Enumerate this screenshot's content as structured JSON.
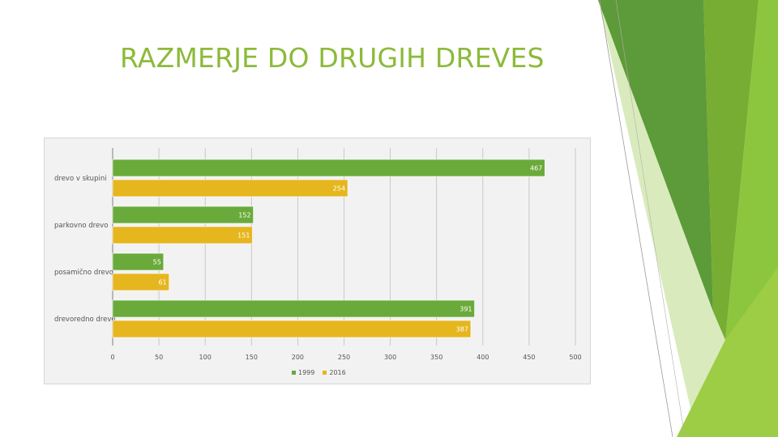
{
  "slide": {
    "title": "RAZMERJE DO DRUGIH DREVES"
  },
  "colors": {
    "s1999": "#6aaa3a",
    "s2016": "#e6b61e",
    "title": "#8cba3a",
    "grid": "#bfbfbf"
  },
  "chart_data": {
    "type": "bar",
    "orientation": "horizontal",
    "categories": [
      "drevo v skupini",
      "parkovno drevo",
      "posamično drevo",
      "drevoredno drevo"
    ],
    "series": [
      {
        "name": "1999",
        "values": [
          467,
          152,
          55,
          391
        ]
      },
      {
        "name": "2016",
        "values": [
          254,
          151,
          61,
          387
        ]
      }
    ],
    "xlim": [
      0,
      500
    ],
    "xticks": [
      "0",
      "50",
      "100",
      "150",
      "200",
      "250",
      "300",
      "350",
      "400",
      "450",
      "500"
    ],
    "grid": true,
    "legend": "bottom",
    "data_labels": true
  }
}
